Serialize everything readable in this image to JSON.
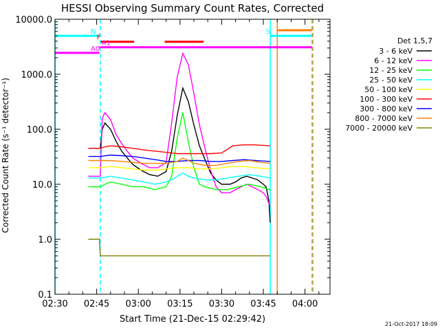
{
  "chart_data": {
    "type": "line",
    "title": "HESSI Observing Summary Count Rates, Corrected",
    "xlabel": "Start Time (21-Dec-15 02:29:42)",
    "ylabel": "Corrected Count Rate (s⁻¹ detector⁻¹)",
    "yscale": "log",
    "ylim": [
      0.1,
      10000
    ],
    "xlim_minutes_after_0230": [
      0,
      99
    ],
    "x_ticks": [
      "02:30",
      "02:45",
      "03:00",
      "03:15",
      "03:30",
      "03:45",
      "04:00"
    ],
    "y_ticks": [
      "0.1",
      "1.0",
      "10.0",
      "100.0",
      "1000.0",
      "10000.0"
    ],
    "legend_title": "Det 1,5,7",
    "legend_position": "right",
    "timestamp": "21-Oct-2017 18:09",
    "flag_bars": [
      {
        "label": "N",
        "color": "#00ffff",
        "level": 5000,
        "start": 0,
        "end": 16
      },
      {
        "label": "F",
        "color": "#ff0000",
        "level": 3900,
        "start": 16.5,
        "end": 28.5
      },
      {
        "label": "",
        "color": "#ff0000",
        "level": 3900,
        "start": 39.5,
        "end": 53.5
      },
      {
        "label": "A0",
        "color": "#ff00ff",
        "level": 2450,
        "start": 0,
        "end": 16
      },
      {
        "label": "A1",
        "color": "#ff00ff",
        "level": 3100,
        "start": 16,
        "end": 92.5
      },
      {
        "label": "S",
        "color": "#00ffff",
        "level": 5000,
        "start": 77.5,
        "end": 92.5
      },
      {
        "label": "",
        "color": "#ff8000",
        "level": 6300,
        "start": 80,
        "end": 92.5
      }
    ],
    "vertical_lines": [
      {
        "t": 0,
        "color": "#00ffff",
        "style": "solid"
      },
      {
        "t": 16.3,
        "color": "#00ffff",
        "style": "dashed"
      },
      {
        "t": 77.5,
        "color": "#00ffff",
        "style": "solid"
      },
      {
        "t": 80,
        "color": "#ff8000",
        "style": "solid"
      },
      {
        "t": 92.5,
        "color": "#00ffff",
        "style": "dashed"
      },
      {
        "t": 92.8,
        "color": "#ff8000",
        "style": "dashed"
      }
    ],
    "series": [
      {
        "name": "3 - 6 keV",
        "color": "#000000",
        "points": [
          [
            12,
            45
          ],
          [
            15,
            45
          ],
          [
            16.3,
            45
          ],
          [
            17,
            100
          ],
          [
            18,
            130
          ],
          [
            20,
            100
          ],
          [
            22,
            60
          ],
          [
            24,
            40
          ],
          [
            26,
            30
          ],
          [
            28,
            23
          ],
          [
            31,
            18
          ],
          [
            34,
            15
          ],
          [
            37,
            14
          ],
          [
            40,
            17
          ],
          [
            42,
            40
          ],
          [
            44,
            180
          ],
          [
            46,
            560
          ],
          [
            48,
            320
          ],
          [
            50,
            120
          ],
          [
            52,
            50
          ],
          [
            54,
            28
          ],
          [
            56,
            16
          ],
          [
            58,
            12
          ],
          [
            60,
            10
          ],
          [
            63,
            10
          ],
          [
            65,
            11
          ],
          [
            67,
            13
          ],
          [
            69,
            14
          ],
          [
            71,
            13
          ],
          [
            73,
            12
          ],
          [
            75,
            10
          ],
          [
            76,
            9
          ],
          [
            77,
            5
          ],
          [
            77.5,
            2
          ]
        ]
      },
      {
        "name": "6 - 12 keV",
        "color": "#ff00ff",
        "points": [
          [
            12,
            14
          ],
          [
            15,
            14
          ],
          [
            16.3,
            14
          ],
          [
            17,
            160
          ],
          [
            18,
            200
          ],
          [
            20,
            150
          ],
          [
            22,
            80
          ],
          [
            24,
            55
          ],
          [
            26,
            40
          ],
          [
            28,
            30
          ],
          [
            31,
            24
          ],
          [
            34,
            20
          ],
          [
            37,
            20
          ],
          [
            40,
            25
          ],
          [
            42,
            130
          ],
          [
            44,
            900
          ],
          [
            46,
            2400
          ],
          [
            48,
            1500
          ],
          [
            50,
            450
          ],
          [
            52,
            120
          ],
          [
            54,
            45
          ],
          [
            56,
            18
          ],
          [
            58,
            9
          ],
          [
            60,
            7
          ],
          [
            63,
            7
          ],
          [
            65,
            8
          ],
          [
            67,
            9
          ],
          [
            69,
            10
          ],
          [
            71,
            9
          ],
          [
            73,
            8
          ],
          [
            75,
            7
          ],
          [
            76,
            6
          ],
          [
            77,
            4.5
          ],
          [
            77.5,
            4
          ]
        ]
      },
      {
        "name": "12 - 25 keV",
        "color": "#00ff00",
        "points": [
          [
            12,
            9
          ],
          [
            16.3,
            9
          ],
          [
            18,
            10
          ],
          [
            20,
            11
          ],
          [
            24,
            10
          ],
          [
            28,
            9
          ],
          [
            32,
            9
          ],
          [
            36,
            8
          ],
          [
            40,
            9
          ],
          [
            42,
            14
          ],
          [
            44,
            70
          ],
          [
            46,
            200
          ],
          [
            48,
            60
          ],
          [
            50,
            20
          ],
          [
            52,
            10
          ],
          [
            54,
            9
          ],
          [
            58,
            8
          ],
          [
            62,
            8
          ],
          [
            66,
            9
          ],
          [
            70,
            10
          ],
          [
            74,
            9
          ],
          [
            77.5,
            8
          ]
        ]
      },
      {
        "name": "25 - 50 keV",
        "color": "#00ffff",
        "points": [
          [
            12,
            13
          ],
          [
            16.3,
            13
          ],
          [
            20,
            14
          ],
          [
            24,
            13
          ],
          [
            28,
            12
          ],
          [
            32,
            11
          ],
          [
            36,
            10
          ],
          [
            40,
            11
          ],
          [
            42,
            12
          ],
          [
            44,
            14
          ],
          [
            46,
            16
          ],
          [
            48,
            14
          ],
          [
            50,
            13
          ],
          [
            54,
            12
          ],
          [
            58,
            12
          ],
          [
            62,
            13
          ],
          [
            66,
            14
          ],
          [
            70,
            15
          ],
          [
            74,
            14
          ],
          [
            77.5,
            13
          ]
        ]
      },
      {
        "name": "50 - 100 keV",
        "color": "#ffff00",
        "points": [
          [
            12,
            20
          ],
          [
            16.3,
            20
          ],
          [
            20,
            21
          ],
          [
            24,
            20
          ],
          [
            28,
            19
          ],
          [
            32,
            18
          ],
          [
            36,
            18
          ],
          [
            40,
            19
          ],
          [
            44,
            20
          ],
          [
            48,
            20
          ],
          [
            52,
            19
          ],
          [
            56,
            19
          ],
          [
            60,
            20
          ],
          [
            64,
            21
          ],
          [
            68,
            21
          ],
          [
            72,
            20
          ],
          [
            77.5,
            19
          ]
        ]
      },
      {
        "name": "100 - 300 keV",
        "color": "#ff0000",
        "points": [
          [
            12,
            45
          ],
          [
            16.3,
            45
          ],
          [
            18,
            48
          ],
          [
            20,
            50
          ],
          [
            24,
            48
          ],
          [
            28,
            45
          ],
          [
            32,
            42
          ],
          [
            36,
            40
          ],
          [
            40,
            38
          ],
          [
            44,
            36
          ],
          [
            48,
            36
          ],
          [
            52,
            36
          ],
          [
            56,
            36
          ],
          [
            60,
            37
          ],
          [
            64,
            50
          ],
          [
            68,
            52
          ],
          [
            72,
            52
          ],
          [
            77.5,
            50
          ]
        ]
      },
      {
        "name": "300 - 800 keV",
        "color": "#0000ff",
        "points": [
          [
            12,
            32
          ],
          [
            16.3,
            32
          ],
          [
            20,
            34
          ],
          [
            24,
            33
          ],
          [
            28,
            32
          ],
          [
            32,
            30
          ],
          [
            36,
            28
          ],
          [
            40,
            26
          ],
          [
            44,
            26
          ],
          [
            48,
            27
          ],
          [
            52,
            27
          ],
          [
            56,
            26
          ],
          [
            60,
            26
          ],
          [
            64,
            27
          ],
          [
            68,
            28
          ],
          [
            72,
            27
          ],
          [
            77.5,
            26
          ]
        ]
      },
      {
        "name": "800 - 7000 keV",
        "color": "#ff8000",
        "points": [
          [
            12,
            27
          ],
          [
            16.3,
            27
          ],
          [
            20,
            27
          ],
          [
            24,
            26
          ],
          [
            28,
            25
          ],
          [
            32,
            24
          ],
          [
            36,
            24
          ],
          [
            40,
            24
          ],
          [
            44,
            26
          ],
          [
            46,
            30
          ],
          [
            48,
            27
          ],
          [
            50,
            24
          ],
          [
            54,
            22
          ],
          [
            58,
            22
          ],
          [
            62,
            24
          ],
          [
            66,
            26
          ],
          [
            70,
            27
          ],
          [
            74,
            25
          ],
          [
            77.5,
            24
          ]
        ]
      },
      {
        "name": "7000 - 20000 keV",
        "color": "#808000",
        "points": [
          [
            12,
            1
          ],
          [
            16,
            1
          ],
          [
            16.3,
            0.5
          ],
          [
            40,
            0.5
          ],
          [
            50,
            0.5
          ],
          [
            60,
            0.5
          ],
          [
            70,
            0.5
          ],
          [
            77.5,
            0.5
          ]
        ]
      }
    ]
  }
}
